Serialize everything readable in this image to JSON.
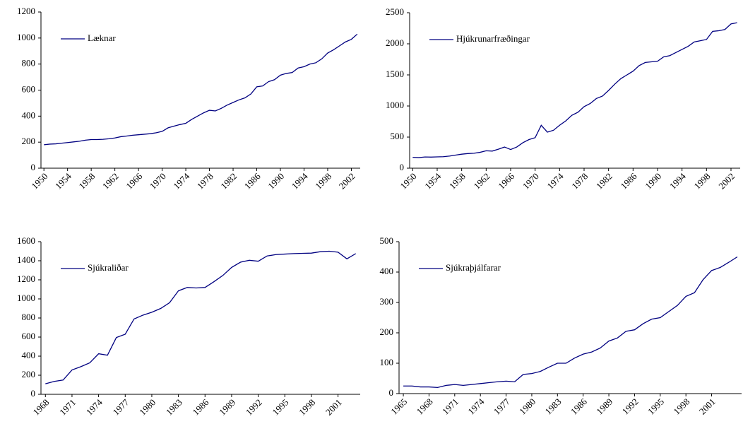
{
  "chart_data": [
    {
      "type": "line",
      "x": [
        1950,
        1951,
        1952,
        1953,
        1954,
        1955,
        1956,
        1957,
        1958,
        1959,
        1960,
        1961,
        1962,
        1963,
        1964,
        1965,
        1966,
        1967,
        1968,
        1969,
        1970,
        1971,
        1972,
        1973,
        1974,
        1975,
        1976,
        1977,
        1978,
        1979,
        1980,
        1981,
        1982,
        1983,
        1984,
        1985,
        1986,
        1987,
        1988,
        1989,
        1990,
        1991,
        1992,
        1993,
        1994,
        1995,
        1996,
        1997,
        1998,
        1999,
        2000,
        2001,
        2002,
        2003
      ],
      "series": [
        {
          "name": "Læknar",
          "color": "#000080",
          "values": [
            180,
            185,
            187,
            192,
            197,
            202,
            207,
            215,
            220,
            220,
            222,
            226,
            232,
            242,
            247,
            253,
            257,
            261,
            265,
            272,
            283,
            310,
            323,
            335,
            345,
            375,
            400,
            425,
            445,
            440,
            460,
            485,
            505,
            525,
            540,
            570,
            625,
            632,
            665,
            680,
            715,
            728,
            735,
            770,
            780,
            800,
            810,
            840,
            885,
            910,
            940,
            970,
            990,
            1030
          ]
        }
      ],
      "xlim": [
        1949.5,
        2003.5
      ],
      "xticks": [
        1950,
        1954,
        1958,
        1962,
        1966,
        1970,
        1974,
        1978,
        1982,
        1986,
        1990,
        1994,
        1998,
        2002
      ],
      "ylim": [
        0,
        1200
      ],
      "yticks": [
        0,
        200,
        400,
        600,
        800,
        1000,
        1200
      ],
      "legend": "top-left"
    },
    {
      "type": "line",
      "x": [
        1950,
        1951,
        1952,
        1953,
        1954,
        1955,
        1956,
        1957,
        1958,
        1959,
        1960,
        1961,
        1962,
        1963,
        1964,
        1965,
        1966,
        1967,
        1968,
        1969,
        1970,
        1971,
        1972,
        1973,
        1974,
        1975,
        1976,
        1977,
        1978,
        1979,
        1980,
        1981,
        1982,
        1983,
        1984,
        1985,
        1986,
        1987,
        1988,
        1989,
        1990,
        1991,
        1992,
        1993,
        1994,
        1995,
        1996,
        1997,
        1998,
        1999,
        2000,
        2001,
        2002,
        2003
      ],
      "series": [
        {
          "name": "Hjúkrunarfræðingar",
          "color": "#000080",
          "values": [
            175,
            170,
            180,
            178,
            182,
            185,
            195,
            210,
            225,
            235,
            240,
            255,
            280,
            275,
            305,
            340,
            300,
            340,
            410,
            460,
            490,
            690,
            580,
            610,
            690,
            760,
            850,
            900,
            990,
            1040,
            1120,
            1160,
            1250,
            1350,
            1440,
            1500,
            1560,
            1650,
            1700,
            1710,
            1720,
            1790,
            1810,
            1860,
            1910,
            1960,
            2030,
            2050,
            2070,
            2200,
            2210,
            2230,
            2320,
            2340
          ]
        }
      ],
      "xlim": [
        1949.5,
        2003.5
      ],
      "xticks": [
        1950,
        1954,
        1958,
        1962,
        1966,
        1970,
        1974,
        1978,
        1982,
        1986,
        1990,
        1994,
        1998,
        2002
      ],
      "ylim": [
        0,
        2500
      ],
      "yticks": [
        0,
        500,
        1000,
        1500,
        2000,
        2500
      ],
      "legend": "top-left"
    },
    {
      "type": "line",
      "x": [
        1968,
        1969,
        1970,
        1971,
        1972,
        1973,
        1974,
        1975,
        1976,
        1977,
        1978,
        1979,
        1980,
        1981,
        1982,
        1983,
        1984,
        1985,
        1986,
        1987,
        1988,
        1989,
        1990,
        1991,
        1992,
        1993,
        1994,
        1995,
        1996,
        1997,
        1998,
        1999,
        2000,
        2001,
        2002,
        2003
      ],
      "series": [
        {
          "name": "Sjúkraliðar",
          "color": "#000080",
          "values": [
            110,
            135,
            150,
            255,
            290,
            330,
            425,
            410,
            595,
            630,
            790,
            830,
            860,
            900,
            960,
            1085,
            1120,
            1115,
            1120,
            1180,
            1245,
            1330,
            1385,
            1405,
            1395,
            1450,
            1465,
            1470,
            1475,
            1478,
            1480,
            1495,
            1500,
            1490,
            1420,
            1475
          ]
        }
      ],
      "xlim": [
        1967.5,
        2003.5
      ],
      "xticks": [
        1968,
        1971,
        1974,
        1977,
        1980,
        1983,
        1986,
        1989,
        1992,
        1995,
        1998,
        2001
      ],
      "ylim": [
        0,
        1600
      ],
      "yticks": [
        0,
        200,
        400,
        600,
        800,
        1000,
        1200,
        1400,
        1600
      ],
      "legend": "top-left"
    },
    {
      "type": "line",
      "x": [
        1965,
        1966,
        1967,
        1968,
        1969,
        1970,
        1971,
        1972,
        1973,
        1974,
        1975,
        1976,
        1977,
        1978,
        1979,
        1980,
        1981,
        1982,
        1983,
        1984,
        1985,
        1986,
        1987,
        1988,
        1989,
        1990,
        1991,
        1992,
        1993,
        1994,
        1995,
        1996,
        1997,
        1998,
        1999,
        2000,
        2001,
        2002,
        2003,
        2004
      ],
      "series": [
        {
          "name": "Sjúkraþjálfarar",
          "color": "#000080",
          "values": [
            25,
            25,
            22,
            22,
            20,
            27,
            30,
            27,
            30,
            33,
            36,
            39,
            41,
            39,
            63,
            66,
            73,
            87,
            100,
            100,
            117,
            130,
            137,
            150,
            173,
            183,
            205,
            210,
            230,
            245,
            250,
            270,
            290,
            320,
            332,
            375,
            405,
            415,
            432,
            450
          ]
        }
      ],
      "xlim": [
        1964.5,
        2004.5
      ],
      "xticks": [
        1965,
        1968,
        1971,
        1974,
        1977,
        1980,
        1983,
        1986,
        1989,
        1992,
        1995,
        1998,
        2001
      ],
      "ylim": [
        0,
        500
      ],
      "yticks": [
        0,
        100,
        200,
        300,
        400,
        500
      ],
      "legend": "top-left"
    }
  ]
}
